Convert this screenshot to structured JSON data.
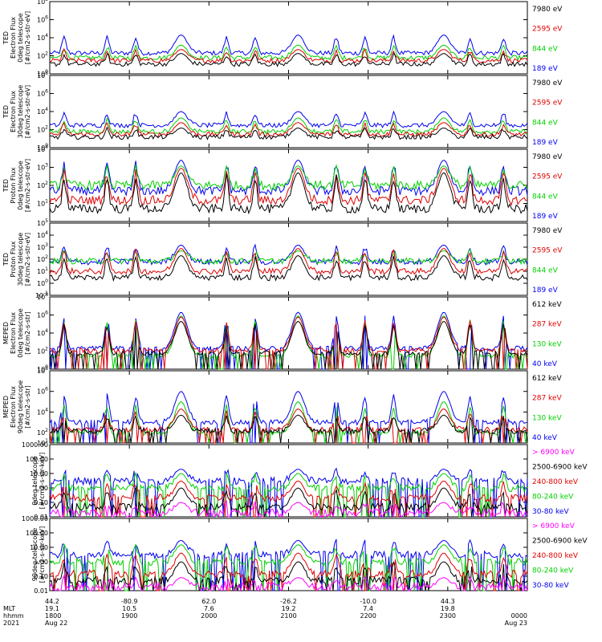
{
  "chart_data": [
    {
      "type": "line",
      "ylabel_lines": [
        "TED",
        "Electron Flux",
        "0deg telescope",
        "[#/cm2-s-str-eV]"
      ],
      "yscale": "log",
      "ticks": [
        "10^0",
        "10^2",
        "10^4",
        "10^6",
        "10^8"
      ],
      "ylim": [
        1,
        100000000
      ],
      "series": [
        {
          "name": "7980 eV",
          "color": "#000000",
          "base": 12,
          "peak": 180
        },
        {
          "name": "2595 eV",
          "color": "#e00000",
          "base": 30,
          "peak": 500
        },
        {
          "name": "844 eV",
          "color": "#00d000",
          "base": 60,
          "peak": 1500
        },
        {
          "name": "189 eV",
          "color": "#0000ee",
          "base": 200,
          "peak": 20000
        }
      ]
    },
    {
      "type": "line",
      "ylabel_lines": [
        "TED",
        "Electron Flux",
        "30deg telescope",
        "[#/cm2-s-str-eV]"
      ],
      "yscale": "log",
      "ticks": [
        "10^0",
        "10^2",
        "10^4",
        "10^6",
        "10^8"
      ],
      "ylim": [
        1,
        100000000
      ],
      "series": [
        {
          "name": "7980 eV",
          "color": "#000000",
          "base": 15,
          "peak": 150
        },
        {
          "name": "2595 eV",
          "color": "#e00000",
          "base": 30,
          "peak": 600
        },
        {
          "name": "844 eV",
          "color": "#00d000",
          "base": 60,
          "peak": 2000
        },
        {
          "name": "189 eV",
          "color": "#0000ee",
          "base": 300,
          "peak": 10000
        }
      ]
    },
    {
      "type": "line",
      "ylabel_lines": [
        "TED",
        "Proton Flux",
        "0deg telescope",
        "[#/cm2-s-str-eV]"
      ],
      "yscale": "log",
      "ticks": [
        "10^1",
        "10^2",
        "10^3",
        "10^4"
      ],
      "ylim": [
        1,
        10000
      ],
      "series": [
        {
          "name": "7980 eV",
          "color": "#000000",
          "base": 5,
          "peak": 500
        },
        {
          "name": "2595 eV",
          "color": "#e00000",
          "base": 15,
          "peak": 900
        },
        {
          "name": "844 eV",
          "color": "#00d000",
          "base": 100,
          "peak": 1200
        },
        {
          "name": "189 eV",
          "color": "#0000ee",
          "base": 50,
          "peak": 2500
        }
      ]
    },
    {
      "type": "line",
      "ylabel_lines": [
        "TED",
        "Proton Flux",
        "30deg telescope",
        "[#/cm2-s-str-eV]"
      ],
      "yscale": "log",
      "ticks": [
        "10^-1",
        "10^0",
        "10^1",
        "10^2",
        "10^3",
        "10^4",
        "10^5"
      ],
      "ylim": [
        0.1,
        100000
      ],
      "series": [
        {
          "name": "7980 eV",
          "color": "#000000",
          "base": 3,
          "peak": 200
        },
        {
          "name": "2595 eV",
          "color": "#e00000",
          "base": 10,
          "peak": 800
        },
        {
          "name": "844 eV",
          "color": "#00d000",
          "base": 70,
          "peak": 500
        },
        {
          "name": "189 eV",
          "color": "#0000ee",
          "base": 60,
          "peak": 1500
        }
      ]
    },
    {
      "type": "line",
      "ylabel_lines": [
        "MEPED",
        "Electron Flux",
        "0deg telescope",
        "[#/cm2-s-str]"
      ],
      "yscale": "log",
      "ticks": [
        "10^0",
        "10^2",
        "10^4",
        "10^6",
        "10^8"
      ],
      "ylim": [
        1,
        100000000
      ],
      "series": [
        {
          "name": "612 keV",
          "color": "#000000",
          "base": 60,
          "peak": 200000
        },
        {
          "name": "287 keV",
          "color": "#e00000",
          "base": 120,
          "peak": 600000
        },
        {
          "name": "130 keV",
          "color": "#00d000",
          "base": 30,
          "peak": 800000
        },
        {
          "name": "40 keV",
          "color": "#0000ee",
          "base": 200,
          "peak": 2000000
        }
      ]
    },
    {
      "type": "line",
      "ylabel_lines": [
        "MEPED",
        "Electron Flux",
        "90deg telescope",
        "[#/cm2-s-str]"
      ],
      "yscale": "log",
      "ticks": [
        "10^1",
        "10^2",
        "10^4",
        "10^6",
        "10^8"
      ],
      "ylim": [
        10,
        100000000
      ],
      "series": [
        {
          "name": "612 keV",
          "color": "#000000",
          "base": 150,
          "peak": 5000
        },
        {
          "name": "287 keV",
          "color": "#e00000",
          "base": 200,
          "peak": 20000
        },
        {
          "name": "130 keV",
          "color": "#00d000",
          "base": 100,
          "peak": 100000
        },
        {
          "name": "40 keV",
          "color": "#0000ee",
          "base": 1000,
          "peak": 1000000
        }
      ]
    },
    {
      "type": "line",
      "ylabel_lines": [
        "0deg telescope",
        "[#/cm2-s-str-keV]"
      ],
      "yscale": "log",
      "ticks": [
        "0.01",
        "0.10",
        "1.00",
        "10.00",
        "100.00",
        "1000.00"
      ],
      "ylim": [
        0.01,
        1000
      ],
      "series": [
        {
          "name": "> 6900 keV",
          "color": "#ff00ff",
          "base": 0.02,
          "peak": 0.1
        },
        {
          "name": "2500-6900 keV",
          "color": "#000000",
          "base": 0.05,
          "peak": 1
        },
        {
          "name": "240-800 keV",
          "color": "#e00000",
          "base": 0.2,
          "peak": 3
        },
        {
          "name": "80-240 keV",
          "color": "#00d000",
          "base": 1,
          "peak": 10
        },
        {
          "name": "30-80 keV",
          "color": "#0000ee",
          "base": 3,
          "peak": 20
        }
      ]
    },
    {
      "type": "line",
      "ylabel_lines": [
        "90deg telescope",
        "[#/cm2-s-str-keV]"
      ],
      "yscale": "log",
      "ticks": [
        "0.01",
        "0.10",
        "1.00",
        "10.00",
        "100.00",
        "1000.00"
      ],
      "ylim": [
        0.01,
        1000
      ],
      "series": [
        {
          "name": "> 6900 keV",
          "color": "#ff00ff",
          "base": 0.02,
          "peak": 0.08
        },
        {
          "name": "2500-6900 keV",
          "color": "#000000",
          "base": 0.05,
          "peak": 1
        },
        {
          "name": "240-800 keV",
          "color": "#e00000",
          "base": 0.15,
          "peak": 4
        },
        {
          "name": "80-240 keV",
          "color": "#00d000",
          "base": 1,
          "peak": 15
        },
        {
          "name": "30-80 keV",
          "color": "#0000ee",
          "base": 3,
          "peak": 30
        }
      ]
    }
  ],
  "passes": [
    0.275,
    0.52,
    0.825
  ],
  "time_axis": {
    "row_labels": [
      "MLT",
      "hhmm",
      "2021"
    ],
    "columns": [
      {
        "lat": "44.2",
        "mlt": "19.1",
        "hhmm": "1800",
        "date": "Aug 22"
      },
      {
        "lat": "-80.9",
        "mlt": "10.5",
        "hhmm": "1900",
        "date": ""
      },
      {
        "lat": "62.0",
        "mlt": "7.6",
        "hhmm": "2000",
        "date": ""
      },
      {
        "lat": "-26.2",
        "mlt": "19.2",
        "hhmm": "2100",
        "date": ""
      },
      {
        "lat": "-10.0",
        "mlt": "7.4",
        "hhmm": "2200",
        "date": ""
      },
      {
        "lat": "44.3",
        "mlt": "19.8",
        "hhmm": "2300",
        "date": ""
      },
      {
        "lat": "",
        "mlt": "",
        "hhmm": "0000",
        "date": "Aug 23"
      }
    ]
  }
}
